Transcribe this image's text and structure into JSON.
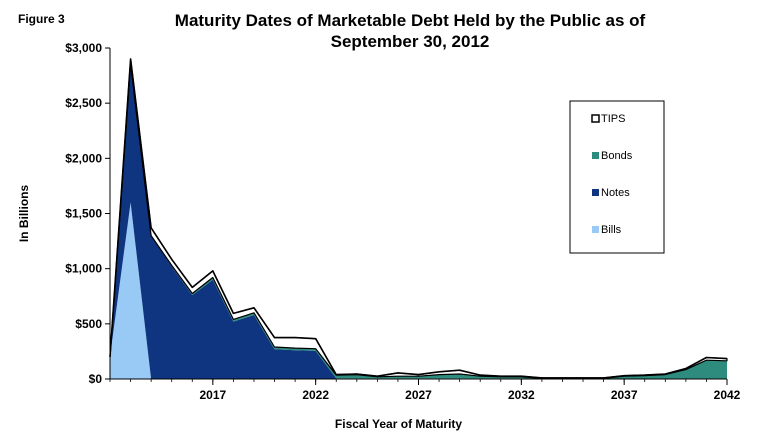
{
  "figure_label": "Figure 3",
  "chart_data": {
    "type": "area",
    "stacked": true,
    "title_lines": [
      "Maturity Dates of Marketable Debt Held by the Public as of",
      "September 30, 2012"
    ],
    "xlabel": "Fiscal Year of Maturity",
    "ylabel": "In Billions",
    "xlim": [
      2012,
      2042
    ],
    "ylim": [
      0,
      3000
    ],
    "x_ticks": [
      2017,
      2022,
      2027,
      2032,
      2037,
      2042
    ],
    "y_ticks": [
      0,
      500,
      1000,
      1500,
      2000,
      2500,
      3000
    ],
    "y_tick_labels": [
      "$0",
      "$500",
      "$1,000",
      "$1,500",
      "$2,000",
      "$2,500",
      "$3,000"
    ],
    "x": [
      2012,
      2013,
      2014,
      2015,
      2016,
      2017,
      2018,
      2019,
      2020,
      2021,
      2022,
      2023,
      2024,
      2025,
      2026,
      2027,
      2028,
      2029,
      2030,
      2031,
      2032,
      2033,
      2034,
      2035,
      2036,
      2037,
      2038,
      2039,
      2040,
      2041,
      2042
    ],
    "legend_position": "right",
    "series": [
      {
        "name": "Bills",
        "color": "#99c9f5",
        "values": [
          200,
          1600,
          0,
          0,
          0,
          0,
          0,
          0,
          0,
          0,
          0,
          0,
          0,
          0,
          0,
          0,
          0,
          0,
          0,
          0,
          0,
          0,
          0,
          0,
          0,
          0,
          0,
          0,
          0,
          0,
          0
        ]
      },
      {
        "name": "Notes",
        "color": "#0f3580",
        "values": [
          0,
          1250,
          1300,
          1020,
          760,
          900,
          520,
          580,
          270,
          260,
          255,
          5,
          5,
          5,
          5,
          5,
          5,
          5,
          5,
          5,
          5,
          0,
          0,
          0,
          0,
          0,
          0,
          0,
          0,
          0,
          0
        ]
      },
      {
        "name": "Bonds",
        "color": "#2e8c7e",
        "values": [
          0,
          0,
          0,
          10,
          15,
          20,
          20,
          20,
          20,
          20,
          20,
          30,
          35,
          15,
          20,
          20,
          35,
          40,
          20,
          15,
          15,
          5,
          5,
          5,
          5,
          25,
          30,
          40,
          85,
          170,
          165
        ]
      },
      {
        "name": "TIPS",
        "color": "#ffffff",
        "values": [
          0,
          50,
          70,
          55,
          55,
          60,
          55,
          45,
          85,
          95,
          90,
          5,
          5,
          5,
          30,
          15,
          25,
          35,
          10,
          5,
          5,
          5,
          5,
          5,
          5,
          5,
          5,
          5,
          10,
          25,
          20
        ]
      }
    ]
  }
}
